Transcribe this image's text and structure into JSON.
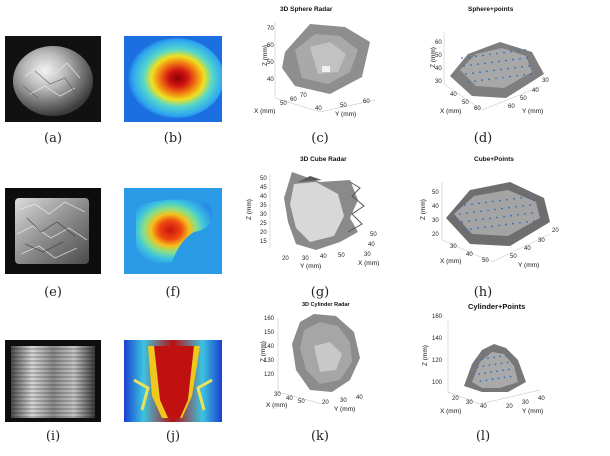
{
  "captions": [
    "(a)",
    "(b)",
    "(c)",
    "(d)",
    "(e)",
    "(f)",
    "(g)",
    "(h)",
    "(i)",
    "(j)",
    "(k)",
    "(l)"
  ],
  "photos": {
    "a": "aluminum-foil-ball",
    "e": "aluminum-foil-cube",
    "i": "metal-can-cylinder"
  },
  "plots": {
    "c": {
      "title": "3D Sphere Radar",
      "zlabel": "Z (mm)",
      "xlabel": "X (mm)",
      "ylabel": "Y (mm)",
      "zticks": [
        "70",
        "60",
        "50",
        "40"
      ],
      "xticks": [
        "50",
        "60",
        "70"
      ],
      "yticks": [
        "40",
        "50",
        "60"
      ]
    },
    "d": {
      "title": "Sphere+points",
      "zlabel": "Z (mm)",
      "xlabel": "X (mm)",
      "ylabel": "Y (mm)",
      "zticks": [
        "60",
        "50",
        "40",
        "30"
      ],
      "xticks": [
        "40",
        "50",
        "60"
      ],
      "yticks": [
        "30",
        "40",
        "50",
        "60"
      ]
    },
    "g": {
      "title": "3D Cube Radar",
      "zlabel": "Z (mm)",
      "xlabel": "X (mm)",
      "ylabel": "Y (mm)",
      "zticks": [
        "50",
        "45",
        "40",
        "35",
        "30",
        "25",
        "20",
        "15"
      ],
      "xticks": [
        "20",
        "30",
        "40",
        "50"
      ],
      "yticks": [
        "30",
        "40",
        "50"
      ]
    },
    "h": {
      "title": "Cube+Points",
      "zlabel": "Z (mm)",
      "xlabel": "X (mm)",
      "ylabel": "Y (mm)",
      "zticks": [
        "50",
        "40",
        "30",
        "20"
      ],
      "xticks": [
        "30",
        "40",
        "50"
      ],
      "yticks": [
        "20",
        "30",
        "40",
        "50"
      ]
    },
    "k": {
      "title": "3D Cylinder Radar",
      "zlabel": "Z (mm)",
      "xlabel": "X (mm)",
      "ylabel": "Y (mm)",
      "zticks": [
        "160",
        "150",
        "140",
        "130",
        "120"
      ],
      "xticks": [
        "30",
        "40",
        "50"
      ],
      "yticks": [
        "20",
        "30",
        "40"
      ]
    },
    "l": {
      "title": "Cylinder+Points",
      "zlabel": "Z (mm)",
      "xlabel": "X (mm)",
      "ylabel": "Y (mm)",
      "zticks": [
        "160",
        "140",
        "120",
        "100"
      ],
      "xticks": [
        "20",
        "30",
        "40"
      ],
      "yticks": [
        "20",
        "30",
        "40"
      ]
    }
  },
  "colors": {
    "heat_low": "#1a5bd6",
    "heat_mid": "#3cc4e0",
    "heat_warm": "#f2d21c",
    "heat_hot": "#c81212",
    "surface": "#9a9a9a",
    "points": "#2f6fbf"
  }
}
